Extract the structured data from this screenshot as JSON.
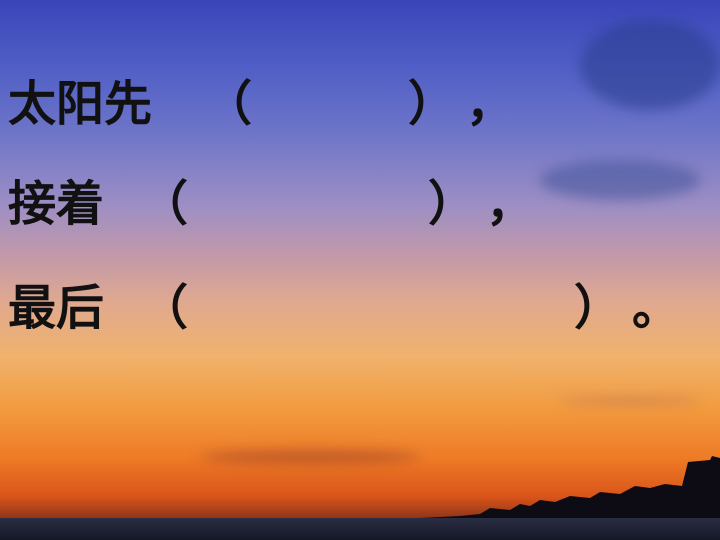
{
  "lines": [
    {
      "label": "太阳先",
      "open": "（",
      "close": "）",
      "end": "，"
    },
    {
      "label": "接着",
      "open": "（",
      "close": "）",
      "end": "，"
    },
    {
      "label": "最后",
      "open": "（",
      "close": "）",
      "end": "。"
    }
  ]
}
